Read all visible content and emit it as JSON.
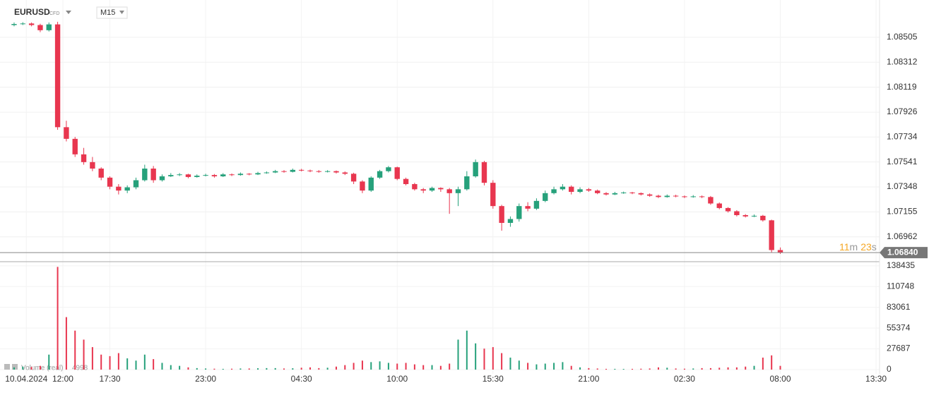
{
  "header": {
    "symbol": "EURUSD",
    "instrument": "CFD",
    "timeframe": "M15"
  },
  "chart_data": {
    "type": "candlestick",
    "colors": {
      "up": "#26a17b",
      "down": "#e8364f"
    },
    "grid": true,
    "xlim": [
      -1.62,
      99.4
    ],
    "xticks": [
      {
        "value": 1.4,
        "label": "10.04.2024"
      },
      {
        "value": 5.6,
        "label": "12:00"
      },
      {
        "value": 11,
        "label": "17:30"
      },
      {
        "value": 22,
        "label": "23:00"
      },
      {
        "value": 33,
        "label": "04:30"
      },
      {
        "value": 44,
        "label": "10:00"
      },
      {
        "value": 55,
        "label": "15:30"
      },
      {
        "value": 66,
        "label": "21:00"
      },
      {
        "value": 77,
        "label": "02:30"
      },
      {
        "value": 88,
        "label": "08:00"
      },
      {
        "value": 99,
        "label": "13:30"
      }
    ],
    "ylim": [
      1.0677,
      1.0875
    ],
    "yticks": [
      1.08505,
      1.08312,
      1.08119,
      1.07926,
      1.07734,
      1.07541,
      1.07348,
      1.07155,
      1.06962
    ],
    "current_price": {
      "value": 1.0684,
      "label": "1.06840"
    },
    "countdown": [
      "11",
      "m",
      "23",
      "s"
    ],
    "candles": [
      [
        1.086,
        1.0862,
        1.0859,
        1.08608
      ],
      [
        1.08608,
        1.08622,
        1.086,
        1.08612
      ],
      [
        1.08612,
        1.0862,
        1.0859,
        1.086
      ],
      [
        1.086,
        1.0861,
        1.08545,
        1.0856
      ],
      [
        1.0856,
        1.0862,
        1.0855,
        1.08605
      ],
      [
        1.08605,
        1.08625,
        1.0779,
        1.0781
      ],
      [
        1.0781,
        1.0786,
        1.077,
        1.0772
      ],
      [
        1.0772,
        1.07735,
        1.0758,
        1.076
      ],
      [
        1.076,
        1.0765,
        1.0752,
        1.0754
      ],
      [
        1.0754,
        1.0758,
        1.0747,
        1.0749
      ],
      [
        1.0749,
        1.075,
        1.074,
        1.0742
      ],
      [
        1.0742,
        1.0743,
        1.0733,
        1.0735
      ],
      [
        1.0735,
        1.0737,
        1.0729,
        1.0732
      ],
      [
        1.0732,
        1.0736,
        1.073,
        1.07345
      ],
      [
        1.07345,
        1.0742,
        1.0733,
        1.074
      ],
      [
        1.074,
        1.0752,
        1.0739,
        1.0749
      ],
      [
        1.0749,
        1.0751,
        1.0738,
        1.074
      ],
      [
        1.074,
        1.07445,
        1.0739,
        1.0743
      ],
      [
        1.0743,
        1.07455,
        1.07425,
        1.0744
      ],
      [
        1.0744,
        1.07455,
        1.07432,
        1.07445
      ],
      [
        1.07445,
        1.0745,
        1.07415,
        1.07425
      ],
      [
        1.07425,
        1.07445,
        1.0742,
        1.07435
      ],
      [
        1.07435,
        1.0745,
        1.0743,
        1.0744
      ],
      [
        1.0744,
        1.07448,
        1.0742,
        1.0743
      ],
      [
        1.0743,
        1.07455,
        1.07425,
        1.07445
      ],
      [
        1.07445,
        1.07452,
        1.07432,
        1.0744
      ],
      [
        1.0744,
        1.0746,
        1.07435,
        1.0745
      ],
      [
        1.0745,
        1.07455,
        1.07438,
        1.07445
      ],
      [
        1.07445,
        1.07465,
        1.0744,
        1.07455
      ],
      [
        1.07455,
        1.07468,
        1.0745,
        1.0746
      ],
      [
        1.0746,
        1.0748,
        1.07455,
        1.0747
      ],
      [
        1.0747,
        1.07478,
        1.07458,
        1.07465
      ],
      [
        1.07465,
        1.0749,
        1.0746,
        1.0748
      ],
      [
        1.0748,
        1.07488,
        1.07468,
        1.07475
      ],
      [
        1.07475,
        1.07482,
        1.07462,
        1.0747
      ],
      [
        1.0747,
        1.07478,
        1.07458,
        1.07465
      ],
      [
        1.07465,
        1.07478,
        1.0746,
        1.0747
      ],
      [
        1.0747,
        1.07475,
        1.07452,
        1.0746
      ],
      [
        1.0746,
        1.07468,
        1.0744,
        1.0745
      ],
      [
        1.0745,
        1.07458,
        1.0737,
        1.0739
      ],
      [
        1.0739,
        1.074,
        1.073,
        1.0732
      ],
      [
        1.0732,
        1.0743,
        1.0731,
        1.0742
      ],
      [
        1.0742,
        1.0748,
        1.0741,
        1.0747
      ],
      [
        1.0747,
        1.0751,
        1.0746,
        1.075
      ],
      [
        1.075,
        1.07505,
        1.074,
        1.0741
      ],
      [
        1.0741,
        1.0742,
        1.0736,
        1.0737
      ],
      [
        1.0737,
        1.0738,
        1.0732,
        1.0733
      ],
      [
        1.0733,
        1.0734,
        1.073,
        1.0732
      ],
      [
        1.0732,
        1.0735,
        1.0731,
        1.0734
      ],
      [
        1.0734,
        1.07345,
        1.0731,
        1.0733
      ],
      [
        1.0733,
        1.0734,
        1.0714,
        1.073
      ],
      [
        1.073,
        1.0735,
        1.072,
        1.0733
      ],
      [
        1.0733,
        1.0747,
        1.0732,
        1.0743
      ],
      [
        1.0743,
        1.0756,
        1.0742,
        1.0754
      ],
      [
        1.0754,
        1.0755,
        1.0736,
        1.0738
      ],
      [
        1.0738,
        1.074,
        1.0718,
        1.072
      ],
      [
        1.072,
        1.0721,
        1.0701,
        1.0707
      ],
      [
        1.0707,
        1.0712,
        1.0704,
        1.071
      ],
      [
        1.071,
        1.0722,
        1.0708,
        1.072
      ],
      [
        1.072,
        1.0723,
        1.0716,
        1.0718
      ],
      [
        1.0718,
        1.0726,
        1.0717,
        1.0724
      ],
      [
        1.0724,
        1.0732,
        1.0723,
        1.073
      ],
      [
        1.073,
        1.0735,
        1.0729,
        1.0733
      ],
      [
        1.0733,
        1.0737,
        1.0732,
        1.0735
      ],
      [
        1.0735,
        1.0736,
        1.0729,
        1.0731
      ],
      [
        1.0731,
        1.07345,
        1.073,
        1.0733
      ],
      [
        1.0733,
        1.0734,
        1.0731,
        1.0732
      ],
      [
        1.0732,
        1.07328,
        1.07292,
        1.073
      ],
      [
        1.073,
        1.07308,
        1.07282,
        1.0729
      ],
      [
        1.0729,
        1.0731,
        1.07285,
        1.073
      ],
      [
        1.073,
        1.07312,
        1.07295,
        1.07305
      ],
      [
        1.07305,
        1.0731,
        1.07292,
        1.073
      ],
      [
        1.073,
        1.07305,
        1.07282,
        1.0729
      ],
      [
        1.0729,
        1.07298,
        1.07272,
        1.0728
      ],
      [
        1.0728,
        1.07288,
        1.07262,
        1.0727
      ],
      [
        1.0727,
        1.0729,
        1.07265,
        1.0728
      ],
      [
        1.0728,
        1.07288,
        1.07268,
        1.07275
      ],
      [
        1.07275,
        1.07282,
        1.07262,
        1.0727
      ],
      [
        1.0727,
        1.07285,
        1.07265,
        1.07275
      ],
      [
        1.07275,
        1.07282,
        1.07262,
        1.0727
      ],
      [
        1.0727,
        1.07278,
        1.0721,
        1.0722
      ],
      [
        1.0722,
        1.07228,
        1.07175,
        1.07185
      ],
      [
        1.07185,
        1.07192,
        1.0715,
        1.0716
      ],
      [
        1.0716,
        1.07168,
        1.0712,
        1.0713
      ],
      [
        1.0713,
        1.07138,
        1.07112,
        1.0712
      ],
      [
        1.0712,
        1.07135,
        1.07115,
        1.07125
      ],
      [
        1.07125,
        1.07132,
        1.0708,
        1.0709
      ],
      [
        1.0709,
        1.07095,
        1.0684,
        1.0686
      ],
      [
        1.0686,
        1.0688,
        1.0683,
        1.0684
      ]
    ],
    "volume": {
      "name": "Volume (real)",
      "ylim": [
        0,
        143000
      ],
      "yticks": [
        0,
        27687,
        55374,
        83061,
        110748,
        138435
      ],
      "values": [
        3000,
        4000,
        3500,
        5000,
        20000,
        137000,
        70000,
        52000,
        40000,
        30000,
        20000,
        18000,
        22000,
        15000,
        12000,
        20000,
        14000,
        9000,
        6000,
        5000,
        3000,
        2000,
        1500,
        1200,
        1000,
        1200,
        1500,
        1500,
        1800,
        2000,
        2000,
        1500,
        1800,
        2500,
        3000,
        2000,
        2500,
        4000,
        6000,
        9000,
        12000,
        10000,
        11000,
        9000,
        8000,
        9000,
        7000,
        6000,
        6000,
        5000,
        8000,
        40000,
        52000,
        35000,
        28000,
        30000,
        22000,
        16000,
        12000,
        9000,
        7000,
        8000,
        9000,
        10000,
        5000,
        3000,
        2000,
        1500,
        1000,
        1000,
        900,
        1000,
        1200,
        1500,
        3000,
        2500,
        1500,
        1200,
        1500,
        2000,
        2000,
        2500,
        3000,
        3000,
        4000,
        5000,
        16000,
        19000,
        4998
      ]
    }
  }
}
